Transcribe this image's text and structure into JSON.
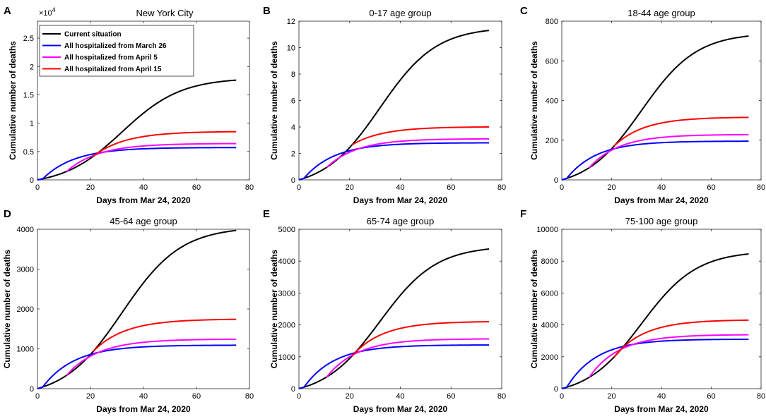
{
  "chart_data": [
    {
      "panel": "A",
      "type": "line",
      "title": "New York City",
      "xlabel": "Days from Mar 24, 2020",
      "ylabel": "Cumulative number of deaths",
      "xlim": [
        0,
        80
      ],
      "ylim": [
        0,
        2.8
      ],
      "xticks": [
        0,
        20,
        40,
        60,
        80
      ],
      "xtick_labels": [
        "0",
        "20",
        "40",
        "60",
        "80"
      ],
      "yticks": [
        0,
        0.5,
        1,
        1.5,
        2,
        2.5
      ],
      "ytick_labels": [
        "0",
        "0.5",
        "1",
        "1.5",
        "2",
        "2.5"
      ],
      "y_exponent_base": "×10",
      "y_exponent_power": "4",
      "final_values": {
        "current": 1.76,
        "march26": 0.57,
        "april5": 0.64,
        "april15": 0.85
      },
      "legend_placement": "top-left",
      "legend": [
        "Current situation",
        "All hospitalized from March 26",
        "All hospitalized from April 5",
        "All hospitalized from April 15"
      ]
    },
    {
      "panel": "B",
      "type": "line",
      "title": "0-17 age group",
      "xlabel": "Days from Mar 24, 2020",
      "ylabel": "Cumulative number of deaths",
      "xlim": [
        0,
        80
      ],
      "ylim": [
        0,
        12
      ],
      "xticks": [
        0,
        20,
        40,
        60,
        80
      ],
      "xtick_labels": [
        "0",
        "20",
        "40",
        "60",
        "80"
      ],
      "yticks": [
        0,
        2,
        4,
        6,
        8,
        10,
        12
      ],
      "ytick_labels": [
        "0",
        "2",
        "4",
        "6",
        "8",
        "10",
        "12"
      ],
      "final_values": {
        "current": 11.3,
        "march26": 2.8,
        "april5": 3.1,
        "april15": 4.0
      }
    },
    {
      "panel": "C",
      "type": "line",
      "title": "18-44 age group",
      "xlabel": "Days from Mar 24, 2020",
      "ylabel": "Cumulative number of deaths",
      "xlim": [
        0,
        80
      ],
      "ylim": [
        0,
        800
      ],
      "xticks": [
        0,
        20,
        40,
        60,
        80
      ],
      "xtick_labels": [
        "0",
        "20",
        "40",
        "60",
        "80"
      ],
      "yticks": [
        0,
        200,
        400,
        600,
        800
      ],
      "ytick_labels": [
        "0",
        "200",
        "400",
        "600",
        "800"
      ],
      "final_values": {
        "current": 725,
        "march26": 195,
        "april5": 228,
        "april15": 315
      }
    },
    {
      "panel": "D",
      "type": "line",
      "title": "45-64 age group",
      "xlabel": "Days from Mar 24, 2020",
      "ylabel": "Cumulative number of deaths",
      "xlim": [
        0,
        80
      ],
      "ylim": [
        0,
        4000
      ],
      "xticks": [
        0,
        20,
        40,
        60,
        80
      ],
      "xtick_labels": [
        "0",
        "20",
        "40",
        "60",
        "80"
      ],
      "yticks": [
        0,
        1000,
        2000,
        3000,
        4000
      ],
      "ytick_labels": [
        "0",
        "1000",
        "2000",
        "3000",
        "4000"
      ],
      "final_values": {
        "current": 3970,
        "march26": 1090,
        "april5": 1240,
        "april15": 1740
      }
    },
    {
      "panel": "E",
      "type": "line",
      "title": "65-74 age group",
      "xlabel": "Days from Mar 24, 2020",
      "ylabel": "Cumulative number of deaths",
      "xlim": [
        0,
        80
      ],
      "ylim": [
        0,
        5000
      ],
      "xticks": [
        0,
        20,
        40,
        60,
        80
      ],
      "xtick_labels": [
        "0",
        "20",
        "40",
        "60",
        "80"
      ],
      "yticks": [
        0,
        1000,
        2000,
        3000,
        4000,
        5000
      ],
      "ytick_labels": [
        "0",
        "1000",
        "2000",
        "3000",
        "4000",
        "5000"
      ],
      "final_values": {
        "current": 4380,
        "march26": 1370,
        "april5": 1560,
        "april15": 2100
      }
    },
    {
      "panel": "F",
      "type": "line",
      "title": "75-100 age group",
      "xlabel": "Days from Mar 24, 2020",
      "ylabel": "Cumulative number of deaths",
      "xlim": [
        0,
        80
      ],
      "ylim": [
        0,
        10000
      ],
      "xticks": [
        0,
        20,
        40,
        60,
        80
      ],
      "xtick_labels": [
        "0",
        "20",
        "40",
        "60",
        "80"
      ],
      "yticks": [
        0,
        2000,
        4000,
        6000,
        8000,
        10000
      ],
      "ytick_labels": [
        "0",
        "2000",
        "4000",
        "6000",
        "8000",
        "10000"
      ],
      "final_values": {
        "current": 8450,
        "march26": 3100,
        "april5": 3380,
        "april15": 4300
      }
    }
  ],
  "series_styles": [
    {
      "key": "current",
      "name": "Current situation",
      "color": "#000000",
      "start_day": 0
    },
    {
      "key": "march26",
      "name": "All hospitalized from March 26",
      "color": "#0000FF",
      "start_day": 0
    },
    {
      "key": "april5",
      "name": "All hospitalized from April 5",
      "color": "#FF00FF",
      "start_day": 11
    },
    {
      "key": "april15",
      "name": "All hospitalized from April 15",
      "color": "#FF0000",
      "start_day": 21
    }
  ],
  "curve_model": {
    "current_midpoint": 32,
    "current_rate": 0.09,
    "current_days": 75,
    "intervention_tau": 12
  }
}
